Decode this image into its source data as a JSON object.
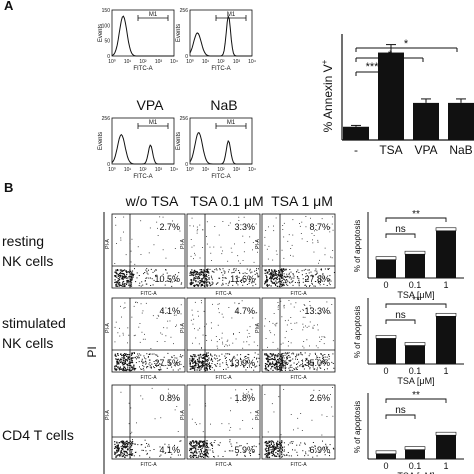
{
  "panel_a": {
    "letter": "A",
    "hist_labels": {
      "y": "Events",
      "x": "FITC-A",
      "gate": "M1"
    },
    "hist_y_ticks": [
      [
        "0",
        "50",
        "100",
        "150"
      ],
      [
        "0",
        "",
        "",
        "256"
      ],
      [
        "0",
        "",
        "",
        "256"
      ],
      [
        "0",
        "",
        "",
        "256"
      ]
    ],
    "hist_x_ticks": [
      "10⁰",
      "10¹",
      "10²",
      "10³",
      "10⁴"
    ],
    "hist_titles": [
      "",
      "",
      "VPA",
      "NaB"
    ],
    "bar_ylabel": "% Annexin V",
    "bar_ylabel_sup": "+",
    "bar_categories": [
      "-",
      "TSA",
      "VPA",
      "NaB"
    ],
    "sig": [
      "***",
      "*",
      "*"
    ]
  },
  "panel_b": {
    "letter": "B",
    "col_titles": [
      "w/o TSA",
      "TSA 0.1 μM",
      "TSA 1 μM"
    ],
    "row_labels": [
      [
        "resting",
        "NK cells"
      ],
      [
        "stimulated",
        "NK cells"
      ],
      [
        "CD4 T cells",
        ""
      ]
    ],
    "pi_label": "PI",
    "dot_axes": {
      "y": "PI-A",
      "x": "FITC-A"
    },
    "quadrant_pct": [
      [
        "2.7%",
        "10.5%",
        "3.3%",
        "11.6%",
        "8.7%",
        "27.8%"
      ],
      [
        "4.1%",
        "27.5%",
        "4.7%",
        "13.9%",
        "13.3%",
        "35.0%"
      ],
      [
        "0.8%",
        "4.1%",
        "1.8%",
        "5.9%",
        "2.6%",
        "6.9%"
      ]
    ],
    "bar_ylabel": "% of apoptosis",
    "bar_xlabel": "TSA [μM]",
    "bar_categories": [
      "0",
      "0.1",
      "1"
    ],
    "sig": [
      "**",
      "ns"
    ]
  },
  "chart_data": [
    {
      "type": "bar",
      "title": "",
      "ylabel": "% Annexin V +",
      "categories": [
        "-",
        "TSA",
        "VPA",
        "NaB"
      ],
      "values": [
        5,
        33,
        14,
        14
      ],
      "error": [
        0.5,
        3,
        1.5,
        1.5
      ],
      "ylim": [
        0,
        40
      ]
    },
    {
      "type": "bar",
      "title": "",
      "ylabel": "% of apoptosis",
      "xlabel": "TSA [μM]",
      "categories": [
        "0",
        "0.1",
        "1"
      ],
      "values": [
        14,
        18,
        35
      ],
      "ylim": [
        0,
        45
      ]
    },
    {
      "type": "bar",
      "title": "",
      "ylabel": "% of apoptosis",
      "xlabel": "TSA [μM]",
      "categories": [
        "0",
        "0.1",
        "1"
      ],
      "values": [
        30,
        22,
        55
      ],
      "ylim": [
        0,
        70
      ]
    },
    {
      "type": "bar",
      "title": "",
      "ylabel": "% of apoptosis",
      "xlabel": "TSA [μM]",
      "categories": [
        "0",
        "0.1",
        "1"
      ],
      "values": [
        3,
        5,
        12
      ],
      "ylim": [
        0,
        30
      ]
    }
  ]
}
